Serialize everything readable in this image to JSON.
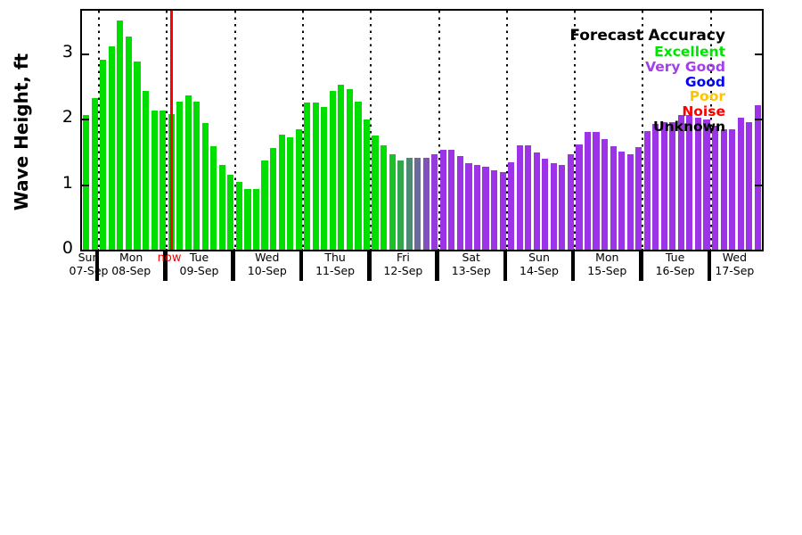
{
  "figure": {
    "background": "#ffffff",
    "accent_green": "#00DE00",
    "accent_purple": "#9C33E6",
    "now_color": "#FF0000"
  },
  "y_axis": {
    "label": "Wave Height, ft",
    "ticks": [
      "0",
      "1",
      "2",
      "3"
    ],
    "tick_values": [
      0,
      1,
      2,
      3
    ]
  },
  "legend": {
    "title": "Forecast Accuracy",
    "items": [
      {
        "label": "Excellent",
        "color": "#00E300"
      },
      {
        "label": "Very Good",
        "color": "#A33FE8"
      },
      {
        "label": "Good",
        "color": "#0000FF"
      },
      {
        "label": "Poor",
        "color": "#FFC400"
      },
      {
        "label": "Noise",
        "color": "#FF0000"
      },
      {
        "label": "Unknown",
        "color": "#000000"
      }
    ]
  },
  "chart_data": {
    "type": "bar",
    "title": "",
    "xlabel": "",
    "ylabel": "Wave Height, ft",
    "unit": "ft",
    "ylim": [
      0,
      3.65
    ],
    "grid": "dotted vertical lines at day boundaries",
    "legend_position": "upper right inside plot",
    "bar_interval_hours": 3,
    "days": [
      {
        "day": "Sun",
        "date": "07-Sep",
        "color": "#00DE00",
        "values": [
          2.05,
          2.32
        ]
      },
      {
        "day": "Mon",
        "date": "08-Sep",
        "color": "#00DE00",
        "values": [
          2.9,
          3.1,
          3.5,
          3.26,
          2.87,
          2.43,
          2.13,
          2.13
        ]
      },
      {
        "day": "Tue",
        "date": "09-Sep",
        "color": "#00DE00",
        "values": [
          2.07,
          2.26,
          2.36,
          2.26,
          1.93,
          1.58,
          1.3,
          1.15
        ]
      },
      {
        "day": "Wed",
        "date": "10-Sep",
        "color": "#00DE00",
        "values": [
          1.03,
          0.93,
          0.93,
          1.36,
          1.55,
          1.76,
          1.72,
          1.84
        ]
      },
      {
        "day": "Thu",
        "date": "11-Sep",
        "color": "#00DE00",
        "values": [
          2.25,
          2.25,
          2.18,
          2.42,
          2.52,
          2.45,
          2.26,
          1.99
        ]
      },
      {
        "day": "Fri",
        "date": "12-Sep",
        "values": [
          1.75,
          1.59,
          1.46,
          1.36,
          1.4,
          1.4,
          1.4,
          1.46
        ],
        "colors": [
          "#00DE00",
          "#00DE00",
          "#1BC227",
          "#33A64C",
          "#4E8973",
          "#696C9A",
          "#8150BF",
          "#943CDB"
        ]
      },
      {
        "day": "Sat",
        "date": "13-Sep",
        "color": "#9C33E6",
        "values": [
          1.52,
          1.52,
          1.43,
          1.32,
          1.29,
          1.26,
          1.21,
          1.18
        ]
      },
      {
        "day": "Sun",
        "date": "14-Sep",
        "color": "#9C33E6",
        "values": [
          1.33,
          1.59,
          1.59,
          1.49,
          1.39,
          1.32,
          1.3,
          1.46
        ]
      },
      {
        "day": "Mon",
        "date": "15-Sep",
        "color": "#9C33E6",
        "values": [
          1.61,
          1.8,
          1.8,
          1.69,
          1.58,
          1.5,
          1.46,
          1.57
        ]
      },
      {
        "day": "Tue",
        "date": "16-Sep",
        "color": "#9C33E6",
        "values": [
          1.81,
          1.92,
          1.95,
          1.95,
          2.05,
          2.05,
          2.02,
          1.99
        ]
      },
      {
        "day": "Wed",
        "date": "17-Sep",
        "color": "#9C33E6",
        "values": [
          1.9,
          1.84,
          1.84,
          2.02,
          1.95,
          2.2
        ]
      }
    ],
    "now_marker": {
      "label": "now",
      "at_bar_of": "Tue 09-Sep",
      "bar_index_in_day": 0
    }
  }
}
